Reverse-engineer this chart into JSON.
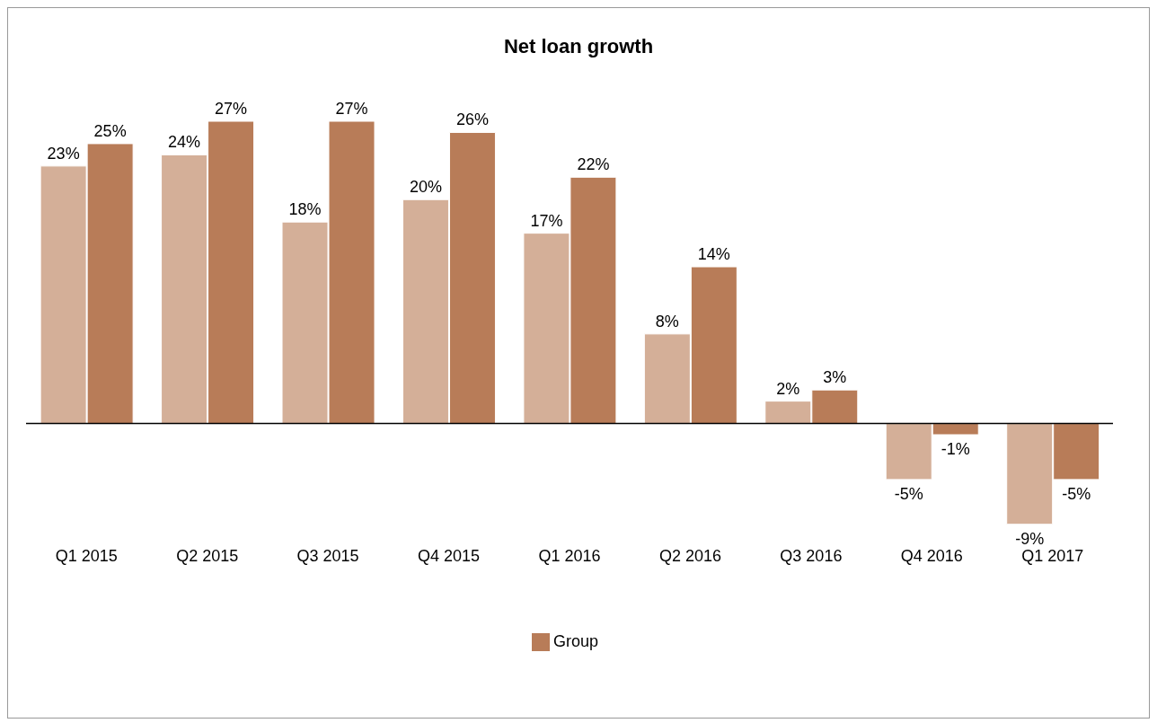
{
  "chart_data": {
    "type": "bar",
    "title": "Net loan growth",
    "categories": [
      "Q1 2015",
      "Q2 2015",
      "Q3 2015",
      "Q4 2015",
      "Q1 2016",
      "Q2 2016",
      "Q3 2016",
      "Q4 2016",
      "Q1 2017"
    ],
    "series": [
      {
        "color": "#d4af98",
        "values": [
          23,
          24,
          18,
          20,
          17,
          8,
          2,
          -5,
          -9
        ],
        "value_labels": [
          "23%",
          "24%",
          "18%",
          "20%",
          "17%",
          "8%",
          "2%",
          "-5%",
          "-9%"
        ]
      },
      {
        "name": "Group",
        "color": "#b87c58",
        "values": [
          25,
          27,
          27,
          26,
          22,
          14,
          3,
          -1,
          -5
        ],
        "value_labels": [
          "25%",
          "27%",
          "27%",
          "26%",
          "22%",
          "14%",
          "3%",
          "-1%",
          "-5%"
        ]
      }
    ],
    "legend": "bottom",
    "grid": false
  }
}
